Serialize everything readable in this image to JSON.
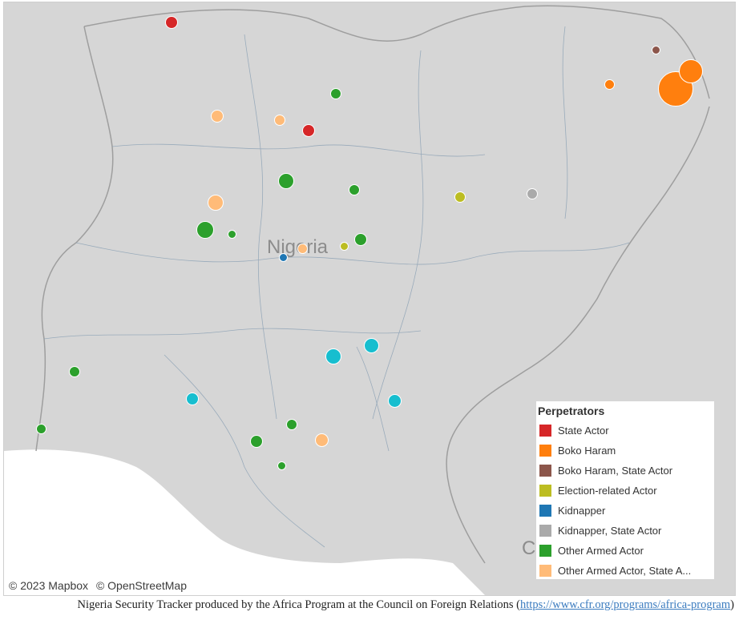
{
  "map": {
    "country_label": "Nigeria",
    "partial_label": "C",
    "attribution": [
      "© 2023 Mapbox",
      "© OpenStreetMap"
    ]
  },
  "legend": {
    "title": "Perpetrators",
    "items": [
      {
        "label": "State Actor",
        "color": "#d62728"
      },
      {
        "label": "Boko Haram",
        "color": "#ff7f0e"
      },
      {
        "label": "Boko Haram, State Actor",
        "color": "#8c564b"
      },
      {
        "label": "Election-related Actor",
        "color": "#bcbd22"
      },
      {
        "label": "Kidnapper",
        "color": "#1f77b4"
      },
      {
        "label": "Kidnapper, State Actor",
        "color": "#aaaaaa"
      },
      {
        "label": "Other Armed Actor",
        "color": "#2ca02c"
      },
      {
        "label": "Other Armed Actor, State A..."
      }
    ],
    "extra_colors": {
      "Other Armed Actor, State Actor": "#ffbb78",
      "Cyan": "#17becf"
    }
  },
  "caption": {
    "text": "Nigeria Security Tracker produced by the Africa Program at the Council on Foreign Relations (",
    "link": "https://www.cfr.org/programs/africa-program",
    "close": ")"
  }
}
